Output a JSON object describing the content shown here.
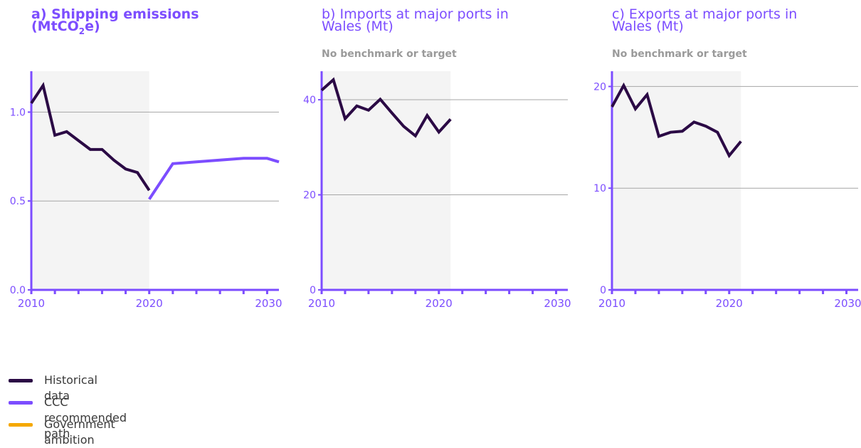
{
  "colors": {
    "historical": "#2b0a45",
    "ccc": "#7c4dff",
    "government": "#f5a800",
    "axis": "#7c4dff",
    "grid": "#a6a6a6",
    "shade": "#f4f4f4",
    "subtitle": "#9a9a9a"
  },
  "panels": [
    {
      "title_main": "a) Shipping emissions",
      "title_unit_pre": "(MtCO",
      "title_unit_sub": "2",
      "title_unit_post": "e)",
      "subtitle": ""
    },
    {
      "title_line1": "b) Imports at major ports in",
      "title_line2": "Wales (Mt)",
      "subtitle": "No benchmark or target"
    },
    {
      "title_line1": "c) Exports at major ports in",
      "title_line2": "Wales (Mt)",
      "subtitle": "No benchmark or target"
    }
  ],
  "legend": [
    {
      "label": "Historical data",
      "color": "#2b0a45"
    },
    {
      "label": "CCC recommended path",
      "color": "#7c4dff"
    },
    {
      "label": "Government ambition",
      "color": "#f5a800"
    }
  ],
  "chart_data": [
    {
      "type": "line",
      "title": "a) Shipping emissions (MtCO2e)",
      "xlim": [
        2010,
        2031
      ],
      "ylim": [
        0,
        1.23
      ],
      "xticks": [
        2010,
        2020,
        2030
      ],
      "xtick_labels": [
        "2010",
        "2020",
        "2030"
      ],
      "yticks": [
        0.0,
        0.5,
        1.0
      ],
      "ytick_labels": [
        "0.0",
        "0.5",
        "1.0"
      ],
      "shaded_x": [
        2010,
        2020
      ],
      "grid": true,
      "series": [
        {
          "name": "Historical data",
          "x": [
            2010,
            2011,
            2012,
            2013,
            2014,
            2015,
            2016,
            2017,
            2018,
            2019,
            2020
          ],
          "y": [
            1.05,
            1.15,
            0.87,
            0.89,
            0.84,
            0.79,
            0.79,
            0.73,
            0.68,
            0.66,
            0.56
          ]
        },
        {
          "name": "CCC recommended path",
          "x": [
            2020,
            2022,
            2024,
            2026,
            2028,
            2030,
            2031
          ],
          "y": [
            0.51,
            0.71,
            0.72,
            0.73,
            0.74,
            0.74,
            0.72
          ]
        }
      ]
    },
    {
      "type": "line",
      "title": "b) Imports at major ports in Wales (Mt)",
      "xlim": [
        2010,
        2031
      ],
      "ylim": [
        0,
        46
      ],
      "xticks": [
        2010,
        2020,
        2030
      ],
      "xtick_labels": [
        "2010",
        "2020",
        "2030"
      ],
      "yticks": [
        0,
        20,
        40
      ],
      "ytick_labels": [
        "0",
        "20",
        "40"
      ],
      "shaded_x": [
        2010,
        2021
      ],
      "grid": true,
      "series": [
        {
          "name": "Historical data",
          "x": [
            2010,
            2011,
            2012,
            2013,
            2014,
            2015,
            2016,
            2017,
            2018,
            2019,
            2020,
            2021
          ],
          "y": [
            42,
            44.2,
            36,
            38.7,
            37.8,
            40.1,
            37.2,
            34.4,
            32.4,
            36.7,
            33.2,
            35.9
          ]
        }
      ]
    },
    {
      "type": "line",
      "title": "c) Exports at major ports in Wales (Mt)",
      "xlim": [
        2010,
        2031
      ],
      "ylim": [
        0,
        21.5
      ],
      "xticks": [
        2010,
        2020,
        2030
      ],
      "xtick_labels": [
        "2010",
        "2020",
        "2030"
      ],
      "yticks": [
        0,
        10,
        20
      ],
      "ytick_labels": [
        "0",
        "10",
        "20"
      ],
      "shaded_x": [
        2010,
        2021
      ],
      "grid": true,
      "series": [
        {
          "name": "Historical data",
          "x": [
            2010,
            2011,
            2012,
            2013,
            2014,
            2015,
            2016,
            2017,
            2018,
            2019,
            2020,
            2021
          ],
          "y": [
            18,
            20.1,
            17.8,
            19.2,
            15.1,
            15.5,
            15.6,
            16.5,
            16.1,
            15.5,
            13.2,
            14.6
          ]
        }
      ]
    }
  ]
}
